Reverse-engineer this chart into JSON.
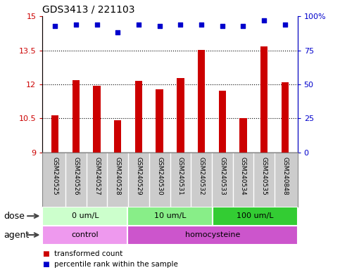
{
  "title": "GDS3413 / 221103",
  "samples": [
    "GSM240525",
    "GSM240526",
    "GSM240527",
    "GSM240528",
    "GSM240529",
    "GSM240530",
    "GSM240531",
    "GSM240532",
    "GSM240533",
    "GSM240534",
    "GSM240535",
    "GSM240848"
  ],
  "bar_values": [
    10.65,
    12.2,
    11.95,
    10.42,
    12.15,
    11.78,
    12.28,
    13.52,
    11.73,
    10.52,
    13.67,
    12.08
  ],
  "percentile_values": [
    93,
    94,
    94,
    88,
    94,
    93,
    94,
    94,
    93,
    93,
    97,
    94
  ],
  "ylim_left": [
    9,
    15
  ],
  "ylim_right": [
    0,
    100
  ],
  "yticks_left": [
    9,
    10.5,
    12,
    13.5,
    15
  ],
  "ytick_labels_left": [
    "9",
    "10.5",
    "12",
    "13.5",
    "15"
  ],
  "yticks_right": [
    0,
    25,
    50,
    75,
    100
  ],
  "ytick_labels_right": [
    "0",
    "25",
    "50",
    "75",
    "100%"
  ],
  "bar_color": "#cc0000",
  "dot_color": "#0000cc",
  "dose_groups": [
    {
      "label": "0 um/L",
      "start": 0,
      "end": 4,
      "color": "#ccffcc"
    },
    {
      "label": "10 um/L",
      "start": 4,
      "end": 8,
      "color": "#88ee88"
    },
    {
      "label": "100 um/L",
      "start": 8,
      "end": 12,
      "color": "#33cc33"
    }
  ],
  "agent_groups": [
    {
      "label": "control",
      "start": 0,
      "end": 4,
      "color": "#ee99ee"
    },
    {
      "label": "homocysteine",
      "start": 4,
      "end": 12,
      "color": "#cc55cc"
    }
  ],
  "dose_label": "dose",
  "agent_label": "agent",
  "legend_bar_label": "transformed count",
  "legend_dot_label": "percentile rank within the sample",
  "bar_color_left_label": "#cc0000",
  "dot_color_right_label": "#0000cc",
  "bg_color": "#ffffff",
  "sample_box_color": "#cccccc",
  "sample_box_border": "#888888"
}
